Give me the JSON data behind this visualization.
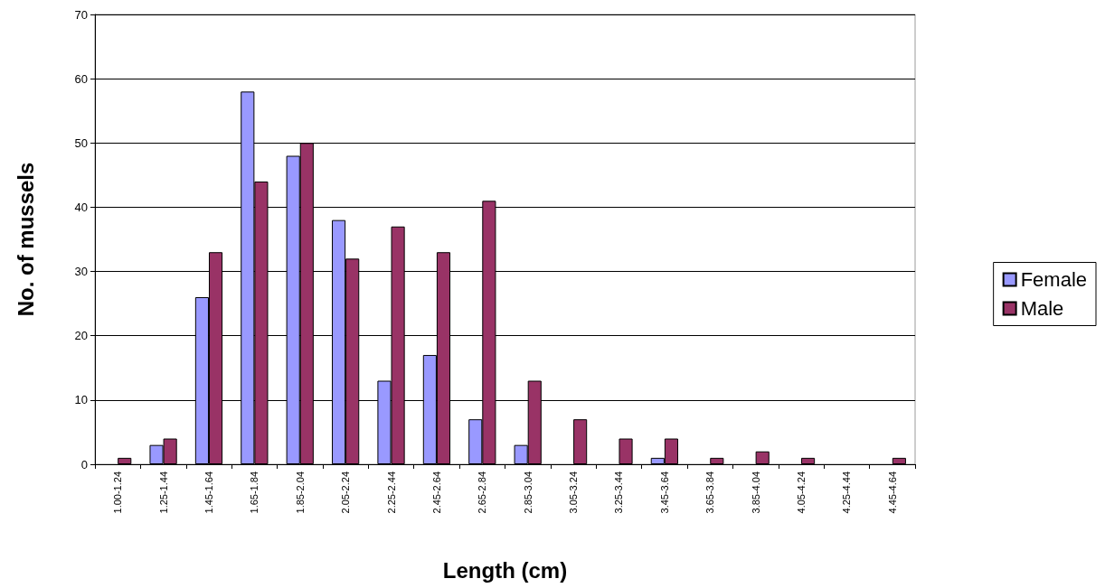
{
  "chart_data": {
    "type": "bar",
    "xlabel": "Length (cm)",
    "ylabel": "No. of mussels",
    "categories": [
      "1.00-1.24",
      "1.25-1.44",
      "1.45-1.64",
      "1.65-1.84",
      "1.85-2.04",
      "2.05-2.24",
      "2.25-2.44",
      "2.45-2.64",
      "2.65-2.84",
      "2.85-3.04",
      "3.05-3.24",
      "3.25-3.44",
      "3.45-3.64",
      "3.65-3.84",
      "3.85-4.04",
      "4.05-4.24",
      "4.25-4.44",
      "4.45-4.64"
    ],
    "series": [
      {
        "name": "Female",
        "color": "#9999ff",
        "values": [
          0,
          3,
          26,
          58,
          48,
          38,
          13,
          17,
          7,
          3,
          0,
          0,
          1,
          0,
          0,
          0,
          0,
          0
        ]
      },
      {
        "name": "Male",
        "color": "#993366",
        "values": [
          1,
          4,
          33,
          44,
          50,
          32,
          37,
          33,
          41,
          13,
          7,
          4,
          4,
          1,
          2,
          1,
          0,
          1
        ]
      }
    ],
    "ylim": [
      0,
      70
    ],
    "yticks": [
      0,
      10,
      20,
      30,
      40,
      50,
      60,
      70
    ],
    "grid": "y",
    "legend": "right"
  }
}
